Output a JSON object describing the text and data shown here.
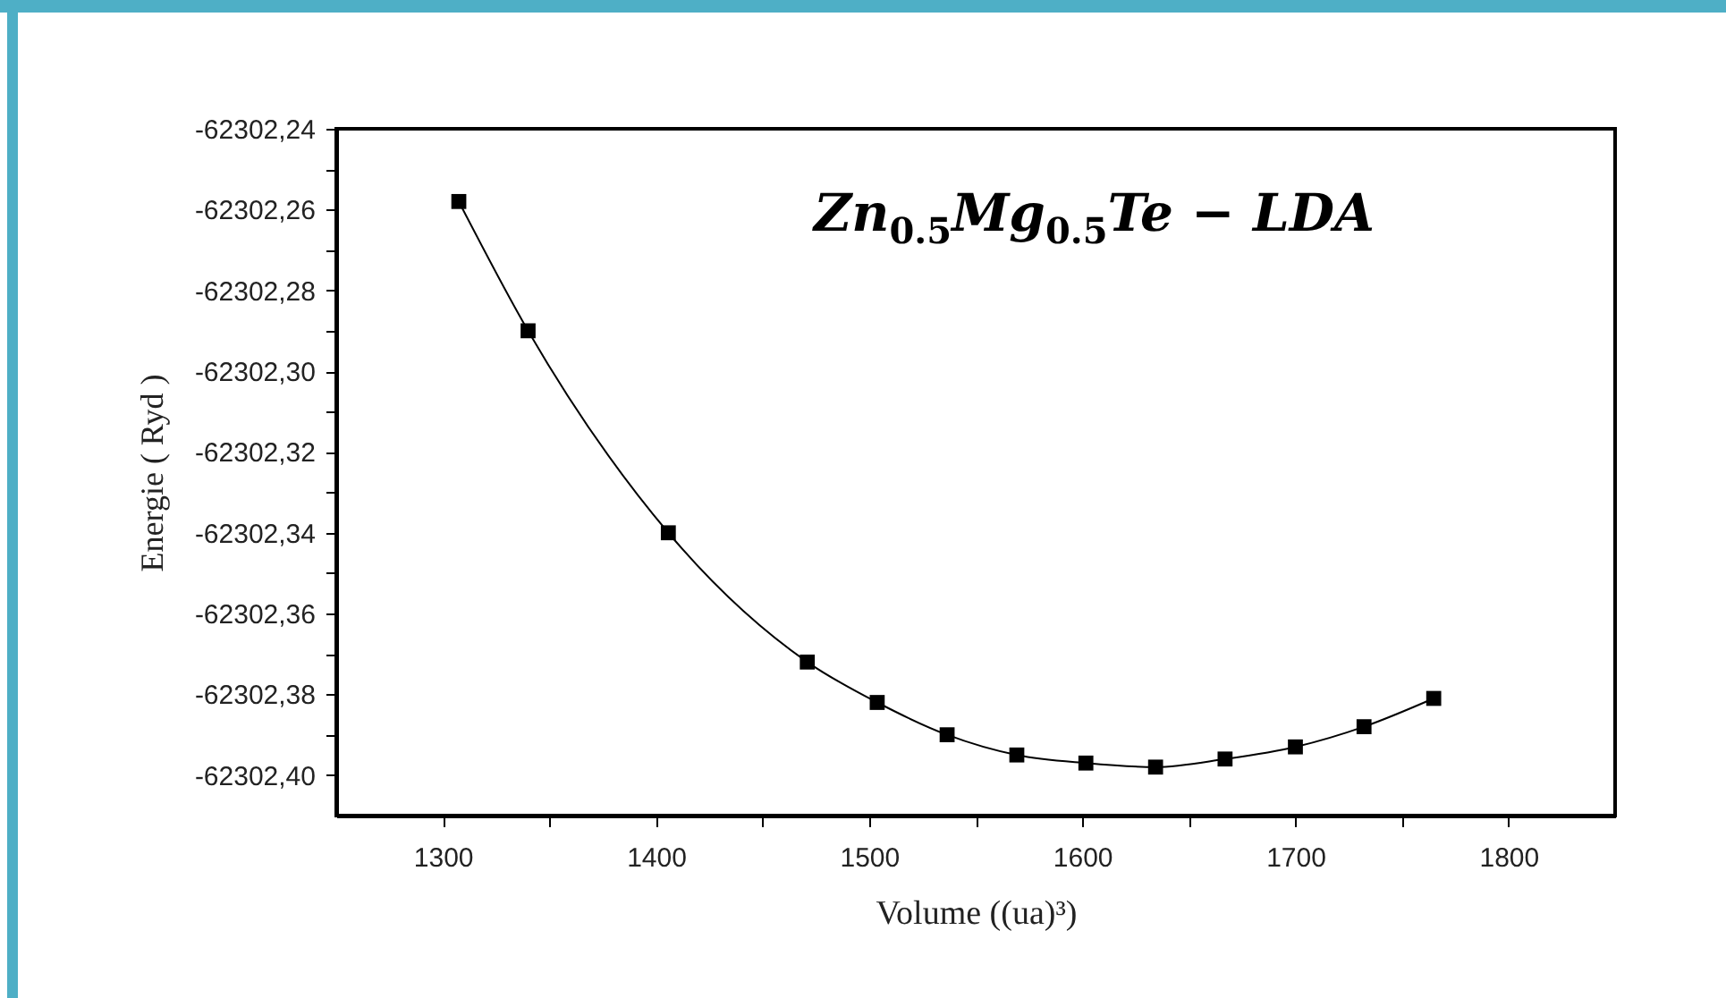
{
  "chart_data": {
    "type": "line",
    "xlabel": "Volume ((ua)³)",
    "ylabel": "Energie ( Ryd )",
    "annotations": [
      "Zn$_{0.5}$Mg$_{0.5}$Te − LDA"
    ],
    "x": [
      1307.5,
      1340,
      1405.8,
      1471,
      1503.8,
      1536.6,
      1569.3,
      1601.7,
      1634.4,
      1667,
      1700,
      1732.2,
      1764.9
    ],
    "series": [
      {
        "color": "#000000",
        "values": [
          -62302.258,
          -62302.29,
          -62302.34,
          -62302.372,
          -62302.382,
          -62302.39,
          -62302.395,
          -62302.397,
          -62302.398,
          -62302.396,
          -62302.393,
          -62302.388,
          -62302.381
        ]
      }
    ],
    "xlim": [
      1250,
      1850
    ],
    "ylim": [
      -62302.41,
      -62302.24
    ],
    "xticks": [
      1300,
      {
        "value": 1350,
        "label": null
      },
      1400,
      {
        "value": 1450,
        "label": null
      },
      1500,
      {
        "value": 1550,
        "label": null
      },
      1600,
      {
        "value": 1650,
        "label": null
      },
      1700,
      {
        "value": 1750,
        "label": null
      },
      1800
    ],
    "yticks": [
      {
        "value": -62302.24,
        "label": "-62302,24"
      },
      {
        "value": -62302.25,
        "label": null
      },
      {
        "value": -62302.26,
        "label": "-62302,26"
      },
      {
        "value": -62302.27,
        "label": null
      },
      {
        "value": -62302.28,
        "label": "-62302,28"
      },
      {
        "value": -62302.29,
        "label": null
      },
      {
        "value": -62302.3,
        "label": "-62302,30"
      },
      {
        "value": -62302.31,
        "label": null
      },
      {
        "value": -62302.32,
        "label": "-62302,32"
      },
      {
        "value": -62302.33,
        "label": null
      },
      {
        "value": -62302.34,
        "label": "-62302,34"
      },
      {
        "value": -62302.35,
        "label": null
      },
      {
        "value": -62302.36,
        "label": "-62302,36"
      },
      {
        "value": -62302.37,
        "label": null
      },
      {
        "value": -62302.38,
        "label": "-62302,38"
      },
      {
        "value": -62302.39,
        "label": null
      },
      {
        "value": -62302.4,
        "label": "-62302,40"
      }
    ],
    "marker": "square",
    "line_style": "solid",
    "grid": false
  }
}
